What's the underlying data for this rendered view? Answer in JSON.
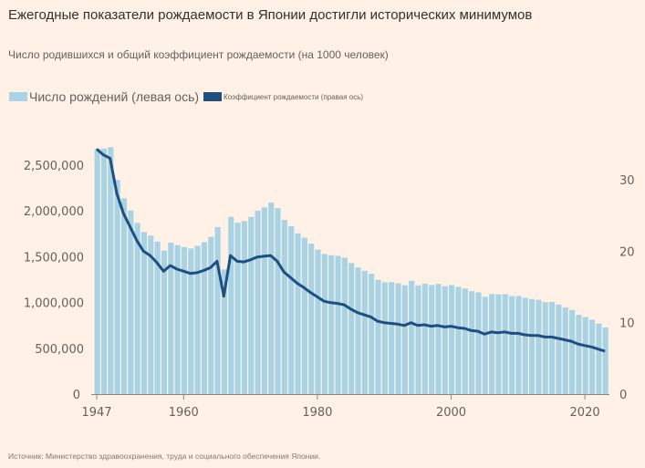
{
  "title": "Ежегодные показатели рождаемости в Японии достигли исторических минимумов",
  "subtitle": "Число родившихся и общий коэффициент рождаемости (на 1000 человек)",
  "source": "Источник: Министерство здравоохранения, труда и социального обеспечения Японии.",
  "colors": {
    "background": "#fff1e5",
    "births": "#a8d3e4",
    "rate": "#1f4e82"
  },
  "chart_data": {
    "type": "bar+line",
    "legend": "top-left",
    "grid": false,
    "x": [
      1947,
      1948,
      1949,
      1950,
      1951,
      1952,
      1953,
      1954,
      1955,
      1956,
      1957,
      1958,
      1959,
      1960,
      1961,
      1962,
      1963,
      1964,
      1965,
      1966,
      1967,
      1968,
      1969,
      1970,
      1971,
      1972,
      1973,
      1974,
      1975,
      1976,
      1977,
      1978,
      1979,
      1980,
      1981,
      1982,
      1983,
      1984,
      1985,
      1986,
      1987,
      1988,
      1989,
      1990,
      1991,
      1992,
      1993,
      1994,
      1995,
      1996,
      1997,
      1998,
      1999,
      2000,
      2001,
      2002,
      2003,
      2004,
      2005,
      2006,
      2007,
      2008,
      2009,
      2010,
      2011,
      2012,
      2013,
      2014,
      2015,
      2016,
      2017,
      2018,
      2019,
      2020,
      2021,
      2022,
      2023
    ],
    "x_ticks": [
      "1947",
      "1960",
      "1980",
      "2000",
      "2020"
    ],
    "y_left": {
      "ticks": [
        "0",
        "500,000",
        "1,000,000",
        "1,500,000",
        "2,000,000",
        "2,500,000"
      ],
      "range": [
        0,
        2850000
      ]
    },
    "y_right": {
      "ticks": [
        "0",
        "10",
        "20",
        "30"
      ],
      "range": [
        0,
        36.3
      ]
    },
    "series": [
      {
        "name": "Число рождений (левая ось)",
        "type": "bar",
        "axis": "left",
        "values": [
          2678792,
          2681624,
          2696638,
          2337507,
          2137689,
          2005162,
          1868040,
          1769580,
          1730692,
          1665278,
          1566713,
          1653469,
          1626088,
          1606041,
          1589372,
          1618616,
          1659521,
          1716761,
          1823697,
          1360974,
          1935647,
          1871839,
          1889815,
          1934239,
          2000973,
          2038682,
          2091983,
          2029989,
          1901440,
          1832617,
          1755100,
          1708643,
          1642580,
          1576889,
          1529455,
          1515392,
          1508687,
          1489780,
          1431577,
          1382946,
          1346658,
          1314006,
          1246802,
          1221585,
          1223245,
          1208989,
          1188282,
          1238328,
          1187064,
          1206555,
          1191665,
          1203147,
          1177669,
          1190547,
          1170662,
          1153855,
          1123610,
          1110721,
          1062530,
          1092674,
          1089818,
          1091156,
          1070035,
          1071304,
          1050806,
          1037231,
          1029816,
          1003539,
          1005721,
          977242,
          946146,
          918400,
          865239,
          840835,
          811622,
          770759,
          727277
        ]
      },
      {
        "name": "Коэффициент рождаемости (правая ось)",
        "type": "line",
        "axis": "right",
        "values": [
          34.3,
          33.5,
          33.0,
          28.1,
          25.3,
          23.4,
          21.5,
          20.0,
          19.4,
          18.4,
          17.2,
          18.0,
          17.5,
          17.2,
          16.9,
          17.0,
          17.3,
          17.7,
          18.6,
          13.7,
          19.4,
          18.6,
          18.5,
          18.8,
          19.2,
          19.3,
          19.4,
          18.6,
          17.1,
          16.3,
          15.5,
          14.9,
          14.2,
          13.6,
          13.0,
          12.8,
          12.7,
          12.5,
          11.9,
          11.4,
          11.1,
          10.8,
          10.2,
          10.0,
          9.9,
          9.8,
          9.6,
          10.0,
          9.6,
          9.7,
          9.5,
          9.6,
          9.4,
          9.5,
          9.3,
          9.2,
          8.9,
          8.8,
          8.4,
          8.7,
          8.6,
          8.7,
          8.5,
          8.5,
          8.3,
          8.2,
          8.2,
          8.0,
          8.0,
          7.8,
          7.6,
          7.4,
          7.0,
          6.8,
          6.6,
          6.3,
          6.0
        ]
      }
    ]
  }
}
